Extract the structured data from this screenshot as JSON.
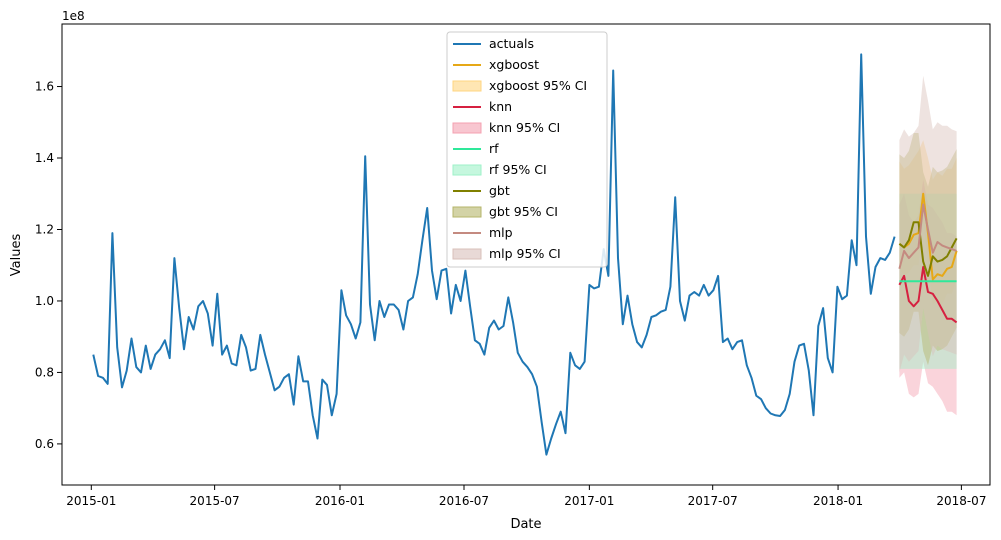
{
  "chart_data": {
    "type": "line",
    "title": "",
    "xlabel": "Date",
    "ylabel": "Values",
    "y_offset_text": "1e8",
    "y_scale": 100000000,
    "xlim": [
      "2014-11-19",
      "2018-08-12"
    ],
    "ylim": [
      0.485,
      1.775
    ],
    "x_ticks": [
      "2015-01",
      "2015-07",
      "2016-01",
      "2016-07",
      "2017-01",
      "2017-07",
      "2018-01",
      "2018-07"
    ],
    "y_ticks": [
      0.6,
      0.8,
      1.0,
      1.2,
      1.4,
      1.6
    ],
    "legend_position": "upper center",
    "grid": false,
    "series": [
      {
        "name": "actuals",
        "color": "#1f77b4",
        "x": [
          "2015-01-04",
          "2015-01-11",
          "2015-01-18",
          "2015-01-25",
          "2015-02-01",
          "2015-02-08",
          "2015-02-15",
          "2015-02-22",
          "2015-03-01",
          "2015-03-08",
          "2015-03-15",
          "2015-03-22",
          "2015-03-29",
          "2015-04-05",
          "2015-04-12",
          "2015-04-19",
          "2015-04-26",
          "2015-05-03",
          "2015-05-10",
          "2015-05-17",
          "2015-05-24",
          "2015-05-31",
          "2015-06-07",
          "2015-06-14",
          "2015-06-21",
          "2015-06-28",
          "2015-07-05",
          "2015-07-12",
          "2015-07-19",
          "2015-07-26",
          "2015-08-02",
          "2015-08-09",
          "2015-08-16",
          "2015-08-23",
          "2015-08-30",
          "2015-09-06",
          "2015-09-13",
          "2015-09-20",
          "2015-09-27",
          "2015-10-04",
          "2015-10-11",
          "2015-10-18",
          "2015-10-25",
          "2015-11-01",
          "2015-11-08",
          "2015-11-15",
          "2015-11-22",
          "2015-11-29",
          "2015-12-06",
          "2015-12-13",
          "2015-12-20",
          "2015-12-27",
          "2016-01-03",
          "2016-01-10",
          "2016-01-17",
          "2016-01-24",
          "2016-01-31",
          "2016-02-07",
          "2016-02-14",
          "2016-02-21",
          "2016-02-28",
          "2016-03-06",
          "2016-03-13",
          "2016-03-20",
          "2016-03-27",
          "2016-04-03",
          "2016-04-10",
          "2016-04-17",
          "2016-04-24",
          "2016-05-01",
          "2016-05-08",
          "2016-05-15",
          "2016-05-22",
          "2016-05-29",
          "2016-06-05",
          "2016-06-12",
          "2016-06-19",
          "2016-06-26",
          "2016-07-03",
          "2016-07-10",
          "2016-07-17",
          "2016-07-24",
          "2016-07-31",
          "2016-08-07",
          "2016-08-14",
          "2016-08-21",
          "2016-08-28",
          "2016-09-04",
          "2016-09-11",
          "2016-09-18",
          "2016-09-25",
          "2016-10-02",
          "2016-10-09",
          "2016-10-16",
          "2016-10-23",
          "2016-10-30",
          "2016-11-06",
          "2016-11-13",
          "2016-11-20",
          "2016-11-27",
          "2016-12-04",
          "2016-12-11",
          "2016-12-18",
          "2016-12-25",
          "2017-01-01",
          "2017-01-08",
          "2017-01-15",
          "2017-01-22",
          "2017-01-29",
          "2017-02-05",
          "2017-02-12",
          "2017-02-19",
          "2017-02-26",
          "2017-03-05",
          "2017-03-12",
          "2017-03-19",
          "2017-03-26",
          "2017-04-02",
          "2017-04-09",
          "2017-04-16",
          "2017-04-23",
          "2017-04-30",
          "2017-05-07",
          "2017-05-14",
          "2017-05-21",
          "2017-05-28",
          "2017-06-04",
          "2017-06-11",
          "2017-06-18",
          "2017-06-25",
          "2017-07-02",
          "2017-07-09",
          "2017-07-16",
          "2017-07-23",
          "2017-07-30",
          "2017-08-06",
          "2017-08-13",
          "2017-08-20",
          "2017-08-27",
          "2017-09-03",
          "2017-09-10",
          "2017-09-17",
          "2017-09-24",
          "2017-10-01",
          "2017-10-08",
          "2017-10-15",
          "2017-10-22",
          "2017-10-29",
          "2017-11-05",
          "2017-11-12",
          "2017-11-19",
          "2017-11-26",
          "2017-12-03",
          "2017-12-10",
          "2017-12-17",
          "2017-12-24",
          "2017-12-31",
          "2018-01-07",
          "2018-01-14",
          "2018-01-21",
          "2018-01-28",
          "2018-02-04",
          "2018-02-11",
          "2018-02-18",
          "2018-02-25",
          "2018-03-04",
          "2018-03-11",
          "2018-03-18",
          "2018-03-25"
        ],
        "values": [
          0.85,
          0.79,
          0.785,
          0.768,
          1.19,
          0.87,
          0.758,
          0.805,
          0.895,
          0.815,
          0.8,
          0.875,
          0.81,
          0.85,
          0.865,
          0.89,
          0.84,
          1.12,
          0.98,
          0.865,
          0.955,
          0.92,
          0.985,
          1.0,
          0.965,
          0.875,
          1.02,
          0.85,
          0.875,
          0.825,
          0.82,
          0.905,
          0.87,
          0.805,
          0.81,
          0.905,
          0.85,
          0.8,
          0.75,
          0.76,
          0.785,
          0.795,
          0.71,
          0.845,
          0.775,
          0.775,
          0.68,
          0.615,
          0.78,
          0.765,
          0.68,
          0.74,
          1.03,
          0.96,
          0.935,
          0.895,
          0.94,
          1.405,
          0.99,
          0.89,
          1.0,
          0.955,
          0.99,
          0.99,
          0.975,
          0.92,
          1.0,
          1.01,
          1.075,
          1.17,
          1.26,
          1.085,
          1.005,
          1.085,
          1.09,
          0.965,
          1.045,
          1.0,
          1.085,
          0.985,
          0.89,
          0.88,
          0.85,
          0.925,
          0.945,
          0.92,
          0.93,
          1.01,
          0.94,
          0.855,
          0.83,
          0.815,
          0.795,
          0.76,
          0.66,
          0.57,
          0.615,
          0.655,
          0.69,
          0.63,
          0.855,
          0.82,
          0.81,
          0.83,
          1.045,
          1.035,
          1.04,
          1.145,
          1.07,
          1.645,
          1.12,
          0.935,
          1.015,
          0.935,
          0.885,
          0.87,
          0.905,
          0.955,
          0.96,
          0.97,
          0.975,
          1.04,
          1.29,
          1.0,
          0.945,
          1.015,
          1.025,
          1.015,
          1.045,
          1.015,
          1.03,
          1.07,
          0.885,
          0.895,
          0.865,
          0.885,
          0.89,
          0.82,
          0.785,
          0.735,
          0.725,
          0.7,
          0.685,
          0.68,
          0.678,
          0.695,
          0.74,
          0.83,
          0.875,
          0.88,
          0.805,
          0.68,
          0.93,
          0.98,
          0.84,
          0.8,
          1.04,
          1.005,
          1.015,
          1.17,
          1.1,
          1.69,
          1.18,
          1.02,
          1.095,
          1.12,
          1.115,
          1.135,
          1.18
        ]
      },
      {
        "name": "xgboost",
        "color": "#e6a817",
        "x": [
          "2018-04-01",
          "2018-04-08",
          "2018-04-15",
          "2018-04-22",
          "2018-04-29",
          "2018-05-06",
          "2018-05-13",
          "2018-05-20",
          "2018-05-27",
          "2018-06-03",
          "2018-06-10",
          "2018-06-17",
          "2018-06-24"
        ],
        "values": [
          1.16,
          1.15,
          1.16,
          1.185,
          1.19,
          1.3,
          1.19,
          1.06,
          1.075,
          1.07,
          1.09,
          1.095,
          1.14
        ],
        "ci_lower": [
          1.09,
          1.07,
          1.08,
          1.1,
          1.1,
          1.22,
          1.1,
          0.99,
          1.0,
          0.99,
          1.02,
          1.02,
          1.06
        ],
        "ci_upper": [
          1.39,
          1.37,
          1.38,
          1.4,
          1.42,
          1.45,
          1.4,
          1.34,
          1.36,
          1.35,
          1.37,
          1.37,
          1.4
        ],
        "ci_name": "xgboost 95% CI",
        "ci_color": "#ffd580"
      },
      {
        "name": "knn",
        "color": "#d62040",
        "x": [
          "2018-04-01",
          "2018-04-08",
          "2018-04-15",
          "2018-04-22",
          "2018-04-29",
          "2018-05-06",
          "2018-05-13",
          "2018-05-20",
          "2018-05-27",
          "2018-06-03",
          "2018-06-10",
          "2018-06-17",
          "2018-06-24"
        ],
        "values": [
          1.045,
          1.07,
          1.0,
          0.985,
          1.0,
          1.095,
          1.025,
          1.02,
          1.0,
          0.975,
          0.95,
          0.95,
          0.94
        ],
        "ci_lower": [
          0.785,
          0.8,
          0.74,
          0.73,
          0.74,
          0.83,
          0.77,
          0.76,
          0.74,
          0.72,
          0.69,
          0.69,
          0.68
        ],
        "ci_upper": [
          1.27,
          1.3,
          1.24,
          1.22,
          1.24,
          1.34,
          1.27,
          1.26,
          1.24,
          1.22,
          1.19,
          1.19,
          1.18
        ],
        "ci_name": "knn 95% CI",
        "ci_color": "#f4a0b0"
      },
      {
        "name": "rf",
        "color": "#2ee89a",
        "x": [
          "2018-04-01",
          "2018-04-08",
          "2018-04-15",
          "2018-04-22",
          "2018-04-29",
          "2018-05-06",
          "2018-05-13",
          "2018-05-20",
          "2018-05-27",
          "2018-06-03",
          "2018-06-10",
          "2018-06-17",
          "2018-06-24"
        ],
        "values": [
          1.055,
          1.055,
          1.055,
          1.055,
          1.055,
          1.055,
          1.055,
          1.055,
          1.055,
          1.055,
          1.055,
          1.055,
          1.055
        ],
        "ci_lower": [
          0.81,
          0.81,
          0.81,
          0.81,
          0.81,
          0.81,
          0.81,
          0.81,
          0.81,
          0.81,
          0.81,
          0.81,
          0.81
        ],
        "ci_upper": [
          1.3,
          1.3,
          1.3,
          1.3,
          1.3,
          1.3,
          1.3,
          1.3,
          1.3,
          1.3,
          1.3,
          1.3,
          1.3
        ],
        "ci_name": "rf 95% CI",
        "ci_color": "#9ef2c8"
      },
      {
        "name": "gbt",
        "color": "#808000",
        "x": [
          "2018-04-01",
          "2018-04-08",
          "2018-04-15",
          "2018-04-22",
          "2018-04-29",
          "2018-05-06",
          "2018-05-13",
          "2018-05-20",
          "2018-05-27",
          "2018-06-03",
          "2018-06-10",
          "2018-06-17",
          "2018-06-24"
        ],
        "values": [
          1.16,
          1.15,
          1.17,
          1.22,
          1.22,
          1.11,
          1.07,
          1.125,
          1.11,
          1.115,
          1.125,
          1.15,
          1.175
        ],
        "ci_lower": [
          0.91,
          0.9,
          0.92,
          0.97,
          0.97,
          0.86,
          0.82,
          0.875,
          0.86,
          0.865,
          0.875,
          0.9,
          0.925
        ],
        "ci_upper": [
          1.41,
          1.4,
          1.42,
          1.47,
          1.47,
          1.36,
          1.32,
          1.375,
          1.36,
          1.365,
          1.375,
          1.4,
          1.425
        ],
        "ci_name": "gbt 95% CI",
        "ci_color": "#b5b56a"
      },
      {
        "name": "mlp",
        "color": "#c48a80",
        "x": [
          "2018-04-01",
          "2018-04-08",
          "2018-04-15",
          "2018-04-22",
          "2018-04-29",
          "2018-05-06",
          "2018-05-13",
          "2018-05-20",
          "2018-05-27",
          "2018-06-03",
          "2018-06-10",
          "2018-06-17",
          "2018-06-24"
        ],
        "values": [
          1.09,
          1.14,
          1.12,
          1.135,
          1.15,
          1.27,
          1.2,
          1.135,
          1.165,
          1.155,
          1.15,
          1.145,
          1.14
        ],
        "ci_lower": [
          0.8,
          0.85,
          0.83,
          0.845,
          0.86,
          0.98,
          0.91,
          0.845,
          0.875,
          0.865,
          0.86,
          0.855,
          0.85
        ],
        "ci_upper": [
          1.45,
          1.48,
          1.46,
          1.47,
          1.49,
          1.63,
          1.56,
          1.48,
          1.5,
          1.49,
          1.49,
          1.48,
          1.475
        ],
        "ci_name": "mlp 95% CI",
        "ci_color": "#d9c0ba"
      }
    ]
  }
}
